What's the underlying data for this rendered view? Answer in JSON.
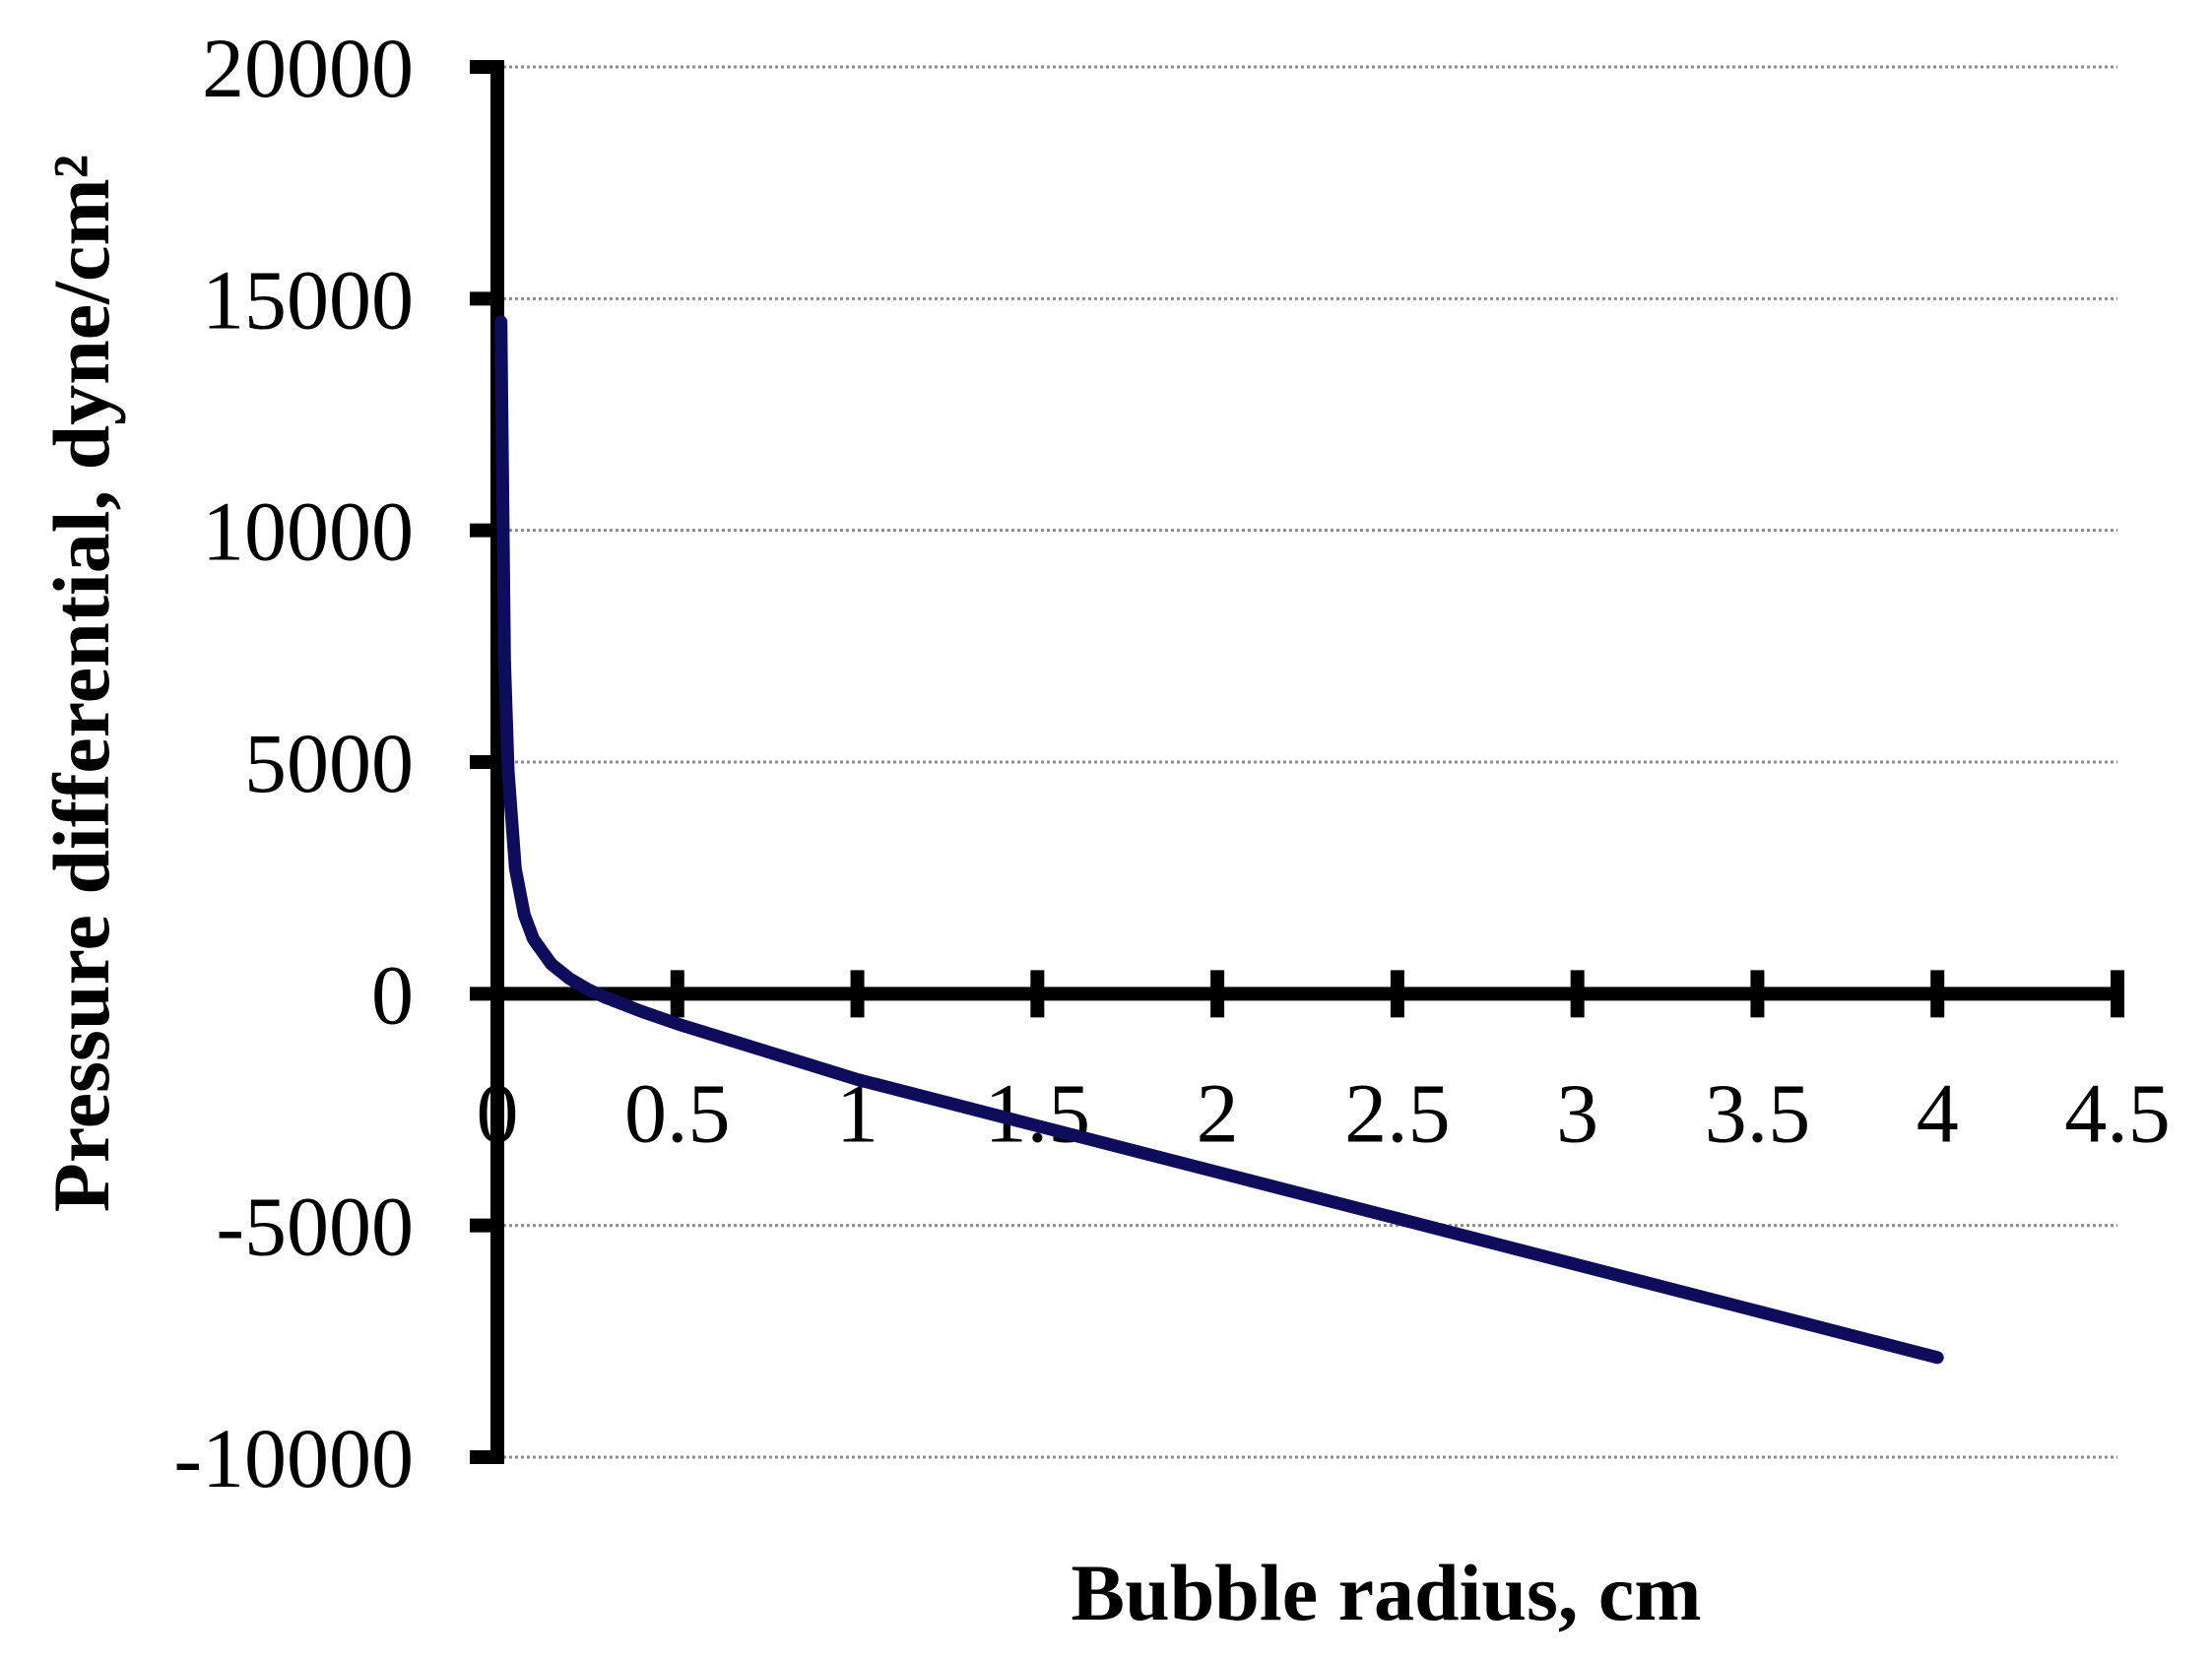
{
  "chart_data": {
    "type": "line",
    "title": "",
    "xlabel": "Bubble radius, cm",
    "ylabel": "Pressure differential, dyne/cm²",
    "xlim": [
      0,
      4.5
    ],
    "ylim": [
      -10000,
      20000
    ],
    "x_ticks": [
      "0",
      "0.5",
      "1",
      "1.5",
      "2",
      "2.5",
      "3",
      "3.5",
      "4",
      "4.5"
    ],
    "y_ticks": [
      "20000",
      "15000",
      "10000",
      "5000",
      "0",
      "-5000",
      "-10000"
    ],
    "grid": true,
    "legend": "none",
    "series": [
      {
        "color": "#0d0d5c",
        "x": [
          0.01,
          0.02,
          0.03,
          0.05,
          0.075,
          0.1,
          0.15,
          0.2,
          0.25,
          0.3,
          0.4,
          0.5,
          0.75,
          1,
          1.5,
          2,
          2.5,
          3,
          3.5,
          4
        ],
        "y": [
          14500,
          7200,
          4800,
          2700,
          1700,
          1180,
          640,
          330,
          100,
          -80,
          -380,
          -650,
          -1250,
          -1850,
          -2850,
          -3850,
          -4850,
          -5850,
          -6850,
          -7850
        ]
      }
    ]
  }
}
